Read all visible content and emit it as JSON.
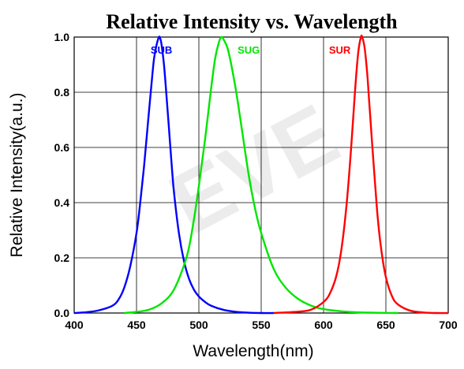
{
  "chart_data": {
    "type": "line",
    "title": "Relative Intensity vs. Wavelength",
    "xlabel": "Wavelength(nm)",
    "ylabel": "Relative Intensity(a.u.)",
    "xlim": [
      400,
      700
    ],
    "ylim": [
      0.0,
      1.0
    ],
    "xticks": [
      400,
      450,
      500,
      550,
      600,
      650,
      700
    ],
    "xtick_labels": [
      "400",
      "450",
      "500",
      "550",
      "600",
      "650",
      "700"
    ],
    "yticks": [
      0.0,
      0.2,
      0.4,
      0.6,
      0.8,
      1.0
    ],
    "ytick_labels": [
      "0.0",
      "0.2",
      "0.4",
      "0.6",
      "0.8",
      "1.0"
    ],
    "grid": true,
    "watermark": "EVE",
    "series": [
      {
        "name": "SUB",
        "color": "#0000ff",
        "label_at": [
          470,
          0.94
        ],
        "x": [
          400,
          410,
          420,
          430,
          435,
          440,
          445,
          450,
          453,
          456,
          459,
          462,
          464,
          466,
          468,
          469,
          470,
          472,
          474,
          476,
          478,
          480,
          484,
          488,
          492,
          496,
          500,
          505,
          510,
          520,
          530,
          540,
          550,
          560
        ],
        "y": [
          0.0,
          0.003,
          0.01,
          0.025,
          0.045,
          0.09,
          0.17,
          0.29,
          0.4,
          0.53,
          0.68,
          0.83,
          0.92,
          0.97,
          1.0,
          0.995,
          0.975,
          0.9,
          0.79,
          0.67,
          0.55,
          0.44,
          0.29,
          0.19,
          0.125,
          0.085,
          0.06,
          0.04,
          0.026,
          0.011,
          0.004,
          0.001,
          0.0,
          0.0
        ]
      },
      {
        "name": "SUG",
        "color": "#00e600",
        "label_at": [
          540,
          0.94
        ],
        "x": [
          440,
          450,
          460,
          470,
          480,
          490,
          495,
          500,
          505,
          510,
          513,
          516,
          518,
          520,
          523,
          526,
          530,
          535,
          540,
          545,
          550,
          560,
          570,
          580,
          590,
          600,
          620,
          640,
          660
        ],
        "y": [
          0.0,
          0.004,
          0.012,
          0.035,
          0.085,
          0.2,
          0.31,
          0.46,
          0.63,
          0.82,
          0.92,
          0.98,
          1.0,
          0.99,
          0.96,
          0.9,
          0.8,
          0.65,
          0.5,
          0.38,
          0.29,
          0.16,
          0.09,
          0.05,
          0.027,
          0.014,
          0.004,
          0.001,
          0.0
        ]
      },
      {
        "name": "SUR",
        "color": "#ff0000",
        "label_at": [
          613,
          0.94
        ],
        "x": [
          560,
          580,
          590,
          600,
          605,
          610,
          614,
          618,
          621,
          624,
          626,
          628,
          630,
          631,
          633,
          635,
          637,
          640,
          643,
          646,
          650,
          655,
          660,
          670,
          680,
          690,
          700
        ],
        "y": [
          0.0,
          0.005,
          0.012,
          0.04,
          0.07,
          0.13,
          0.22,
          0.37,
          0.53,
          0.72,
          0.85,
          0.95,
          1.0,
          1.0,
          0.96,
          0.87,
          0.74,
          0.55,
          0.37,
          0.24,
          0.13,
          0.06,
          0.03,
          0.008,
          0.002,
          0.0,
          0.0
        ]
      }
    ]
  }
}
